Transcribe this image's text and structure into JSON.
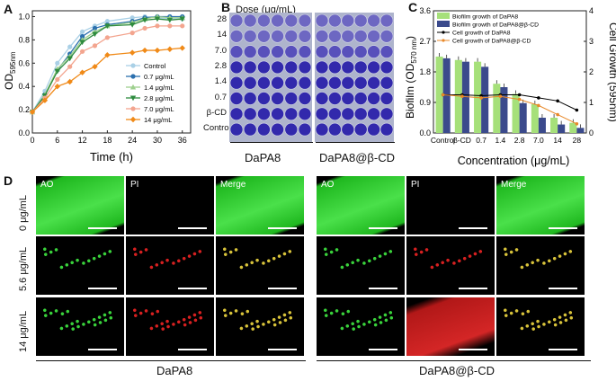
{
  "panels": {
    "A": "A",
    "B": "B",
    "C": "C",
    "D": "D"
  },
  "chartA": {
    "chart_data": {
      "type": "line",
      "xlabel": "Time (h)",
      "ylabel": "OD595nm",
      "ylabel_main": "OD",
      "ylabel_sub": "595nm",
      "x": [
        0,
        3,
        6,
        9,
        12,
        15,
        18,
        24,
        27,
        30,
        33,
        36
      ],
      "xticks": [
        "0",
        "6",
        "12",
        "18",
        "24",
        "30",
        "36"
      ],
      "xtick_values": [
        0,
        6,
        12,
        18,
        24,
        30,
        36
      ],
      "yticks": [
        "0.0",
        "0.2",
        "0.4",
        "0.6",
        "0.8",
        "1.0"
      ],
      "ytick_values": [
        0,
        0.2,
        0.4,
        0.6,
        0.8,
        1.0
      ],
      "xlim": [
        0,
        38
      ],
      "ylim": [
        0,
        1.05
      ],
      "series": [
        {
          "name": "Control",
          "color": "#a9d0e6",
          "marker": "circle",
          "values": [
            0.18,
            0.36,
            0.6,
            0.74,
            0.87,
            0.92,
            0.96,
            0.99,
            1.0,
            0.99,
            0.98,
            0.98
          ]
        },
        {
          "name": "0.7 μg/mL",
          "color": "#2b6fae",
          "marker": "circle",
          "values": [
            0.18,
            0.33,
            0.54,
            0.68,
            0.83,
            0.9,
            0.93,
            0.96,
            0.99,
            1.0,
            1.0,
            1.0
          ]
        },
        {
          "name": "1.4 μg/mL",
          "color": "#9ed08e",
          "marker": "triangle",
          "values": [
            0.18,
            0.33,
            0.55,
            0.66,
            0.8,
            0.87,
            0.92,
            0.95,
            0.98,
            1.0,
            0.99,
            0.99
          ]
        },
        {
          "name": "2.8 μg/mL",
          "color": "#2e8b3e",
          "marker": "triangle-down",
          "values": [
            0.18,
            0.32,
            0.53,
            0.64,
            0.78,
            0.85,
            0.92,
            0.93,
            0.97,
            0.98,
            0.97,
            0.98
          ]
        },
        {
          "name": "7.0 μg/mL",
          "color": "#f3a58f",
          "marker": "circle",
          "values": [
            0.18,
            0.3,
            0.46,
            0.57,
            0.7,
            0.75,
            0.82,
            0.86,
            0.9,
            0.92,
            0.92,
            0.92
          ]
        },
        {
          "name": "14  μg/mL",
          "color": "#f08a18",
          "marker": "diamond",
          "values": [
            0.18,
            0.28,
            0.4,
            0.44,
            0.52,
            0.57,
            0.67,
            0.69,
            0.71,
            0.71,
            0.72,
            0.73
          ]
        }
      ]
    }
  },
  "panelB": {
    "dose_label": "Dose (μg/mL)",
    "rows": [
      "28",
      "14",
      "7.0",
      "2.8",
      "1.4",
      "0.7",
      "β-CD",
      "Control"
    ],
    "plate_labels": [
      "DaPA8",
      "DaPA8@β-CD"
    ]
  },
  "chartC": {
    "chart_data": {
      "type": "bar",
      "categories": [
        "Control",
        "β-CD",
        "0.7",
        "1.4",
        "2.8",
        "7.0",
        "14",
        "28"
      ],
      "xlabel": "Concentration (μg/mL)",
      "ylabel_left": "Biofilm (OD570 nm)",
      "ylabel_left_main": "Biofilm (OD",
      "ylabel_left_sub": "570 nm",
      "ylabel_left_end": ")",
      "ylabel_right": "Cell Growth (595nm)",
      "ylim_left": [
        0.0,
        3.6
      ],
      "yticks_left": [
        "0.0",
        "0.9",
        "1.8",
        "2.7",
        "3.6"
      ],
      "ytick_values_left": [
        0.0,
        0.9,
        1.8,
        2.7,
        3.6
      ],
      "ylim_right": [
        0,
        4
      ],
      "yticks_right": [
        "0",
        "1",
        "2",
        "3",
        "4"
      ],
      "ytick_values_right": [
        0,
        1,
        2,
        3,
        4
      ],
      "series": [
        {
          "name": "Biofilm growth of DaPA8",
          "kind": "bar",
          "color": "#a6e07a",
          "values": [
            2.25,
            2.15,
            2.1,
            1.45,
            1.15,
            0.85,
            0.45,
            0.3
          ]
        },
        {
          "name": "Biofilm growth of DaPA8@β-CD",
          "kind": "bar",
          "color": "#3b4a8c",
          "values": [
            2.2,
            2.1,
            1.95,
            1.35,
            0.88,
            0.45,
            0.25,
            0.15
          ]
        },
        {
          "name": "Cell growth of DaPA8",
          "kind": "line",
          "color": "#000000",
          "values": [
            1.25,
            1.25,
            1.22,
            1.25,
            1.25,
            1.15,
            1.05,
            0.75
          ]
        },
        {
          "name": "Cell growth of DaPA8@β-CD",
          "kind": "line",
          "color": "#e8892a",
          "values": [
            1.25,
            1.2,
            1.15,
            1.2,
            1.1,
            0.9,
            0.6,
            0.3
          ]
        }
      ]
    }
  },
  "panelD": {
    "col_labels": [
      "AO",
      "PI",
      "Merge",
      "AO",
      "PI",
      "Merge"
    ],
    "row_labels": [
      "0 μg/mL",
      "5.6 μg/mL",
      "14 μg/mL"
    ],
    "group_labels": [
      "DaPA8",
      "DaPA8@β-CD"
    ]
  }
}
